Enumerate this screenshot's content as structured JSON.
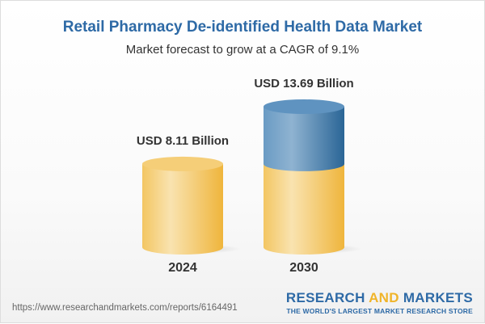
{
  "chart_data": {
    "type": "bar",
    "title": "Retail Pharmacy De-identified Health Data Market",
    "subtitle": "Market forecast to grow at a CAGR of 9.1%",
    "categories": [
      "2024",
      "2030"
    ],
    "values": [
      8.11,
      13.69
    ],
    "data_labels": [
      "USD 8.11 Billion",
      "USD 13.69 Billion"
    ],
    "unit": "USD Billion",
    "colors": {
      "base": "#f2c45e",
      "growth": "#4a82b4"
    }
  },
  "footer": {
    "url": "https://www.researchandmarkets.com/reports/6164491",
    "logo_part1": "RESEARCH ",
    "logo_part2": "AND",
    "logo_part3": " MARKETS",
    "tagline": "THE WORLD'S LARGEST MARKET RESEARCH STORE"
  }
}
